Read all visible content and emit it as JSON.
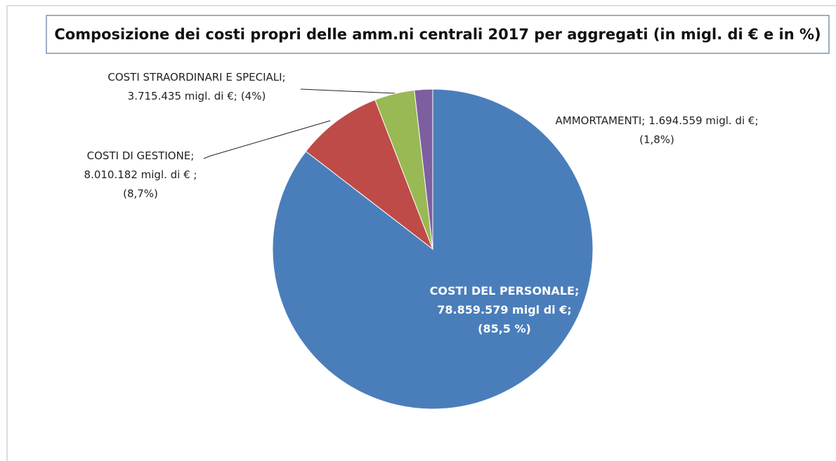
{
  "chart_data": {
    "type": "pie",
    "title": "Composizione dei costi propri delle amm.ni centrali 2017 per aggregati (in migl. di € e in %)",
    "categories": [
      "COSTI DEL PERSONALE;",
      "COSTI DI GESTIONE;",
      "COSTI STRAORDINARI E SPECIALI;",
      "AMMORTAMENTI;"
    ],
    "values": [
      78859579,
      8010182,
      3715435,
      1694559
    ],
    "value_labels": [
      "78.859.579 migl di €;",
      "8.010.182 migl. di € ;",
      "3.715.435 migl. di €;",
      "1.694.559  migl. di €;"
    ],
    "percent_labels": [
      "(85,5 %)",
      "(8,7%)",
      "(4%)",
      "(1,8%)"
    ],
    "colors": [
      "#4a7ebb",
      "#be4b48",
      "#98b954",
      "#7d5fa0"
    ]
  }
}
